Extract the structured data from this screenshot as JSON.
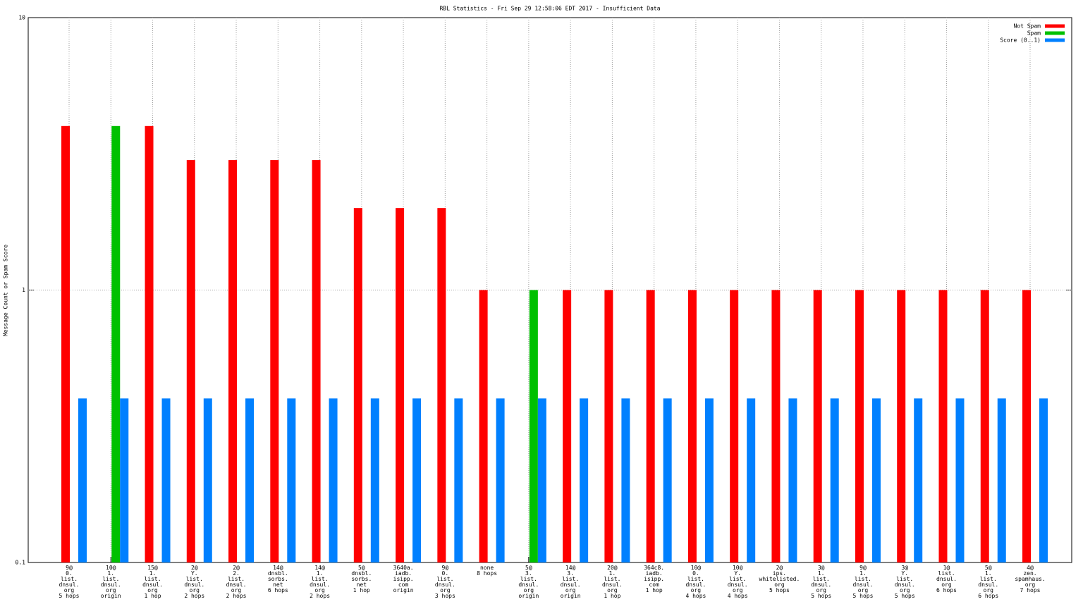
{
  "chart_data": {
    "type": "bar",
    "title": "RBL Statistics - Fri Sep 29 12:58:06 EDT 2017 - Insufficient Data",
    "y_label": "Message Count or Spam Score",
    "categories": [
      "9@\n0.\nlist.\ndnsul.\norg\n5 hops",
      "10@\n1.\nlist.\ndnsul.\norg\norigin",
      "15@\n1.\nlist.\ndnsul.\norg\n1 hop",
      "2@\nY.\nlist.\ndnsul.\norg\n2 hops",
      "2@\n2.\nlist.\ndnsul.\norg\n2 hops",
      "14@\ndnsbl.\nsorbs.\nnet\n6 hops",
      "14@\n1.\nlist.\ndnsul.\norg\n2 hops",
      "5@\ndnsbl.\nsorbs.\nnet\n1 hop",
      "3640a.\niadb.\nisipp.\ncom\norigin",
      "9@\n0.\nlist.\ndnsul.\norg\n3 hops",
      "none\n8 hops",
      "5@\n3.\nlist.\ndnsul.\norg\norigin",
      "14@\n3.\nlist.\ndnsul.\norg\norigin",
      "20@\n1.\nlist.\ndnsul.\norg\n1 hop",
      "364c8.\niadb.\nisipp.\ncom\n1 hop",
      "10@\n0.\nlist.\ndnsul.\norg\n4 hops",
      "10@\nY.\nlist.\ndnsul.\norg\n4 hops",
      "2@\nips.\nwhitelisted.\norg\n5 hops",
      "3@\n1.\nlist.\ndnsul.\norg\n5 hops",
      "9@\n1.\nlist.\ndnsul.\norg\n5 hops",
      "3@\nY.\nlist.\ndnsul.\norg\n5 hops",
      "1@\nlist.\ndnsul.\norg\n6 hops",
      "5@\n1.\nlist.\ndnsul.\norg\n6 hops",
      "4@\nzen.\nspamhaus.\norg\n7 hops"
    ],
    "series": [
      {
        "name": "Not Spam",
        "color": "#ff0000",
        "values": [
          4,
          null,
          4,
          3,
          3,
          3,
          3,
          2,
          2,
          2,
          1,
          null,
          1,
          1,
          1,
          1,
          1,
          1,
          1,
          1,
          1,
          1,
          1,
          1
        ]
      },
      {
        "name": "Spam",
        "color": "#00c000",
        "values": [
          null,
          4,
          null,
          null,
          null,
          null,
          null,
          null,
          null,
          null,
          null,
          1,
          null,
          null,
          null,
          null,
          null,
          null,
          null,
          null,
          null,
          null,
          null,
          null
        ]
      },
      {
        "name": "Score (0..1)",
        "color": "#0080ff",
        "values": [
          0.4,
          0.4,
          0.4,
          0.4,
          0.4,
          0.4,
          0.4,
          0.4,
          0.4,
          0.4,
          0.4,
          0.4,
          0.4,
          0.4,
          0.4,
          0.4,
          0.4,
          0.4,
          0.4,
          0.4,
          0.4,
          0.4,
          0.4,
          0.4
        ]
      }
    ],
    "ylim": [
      0.1,
      10
    ],
    "yticks": [
      10,
      1,
      0.1
    ],
    "ylog": true,
    "grid": true,
    "legend": "top right"
  }
}
